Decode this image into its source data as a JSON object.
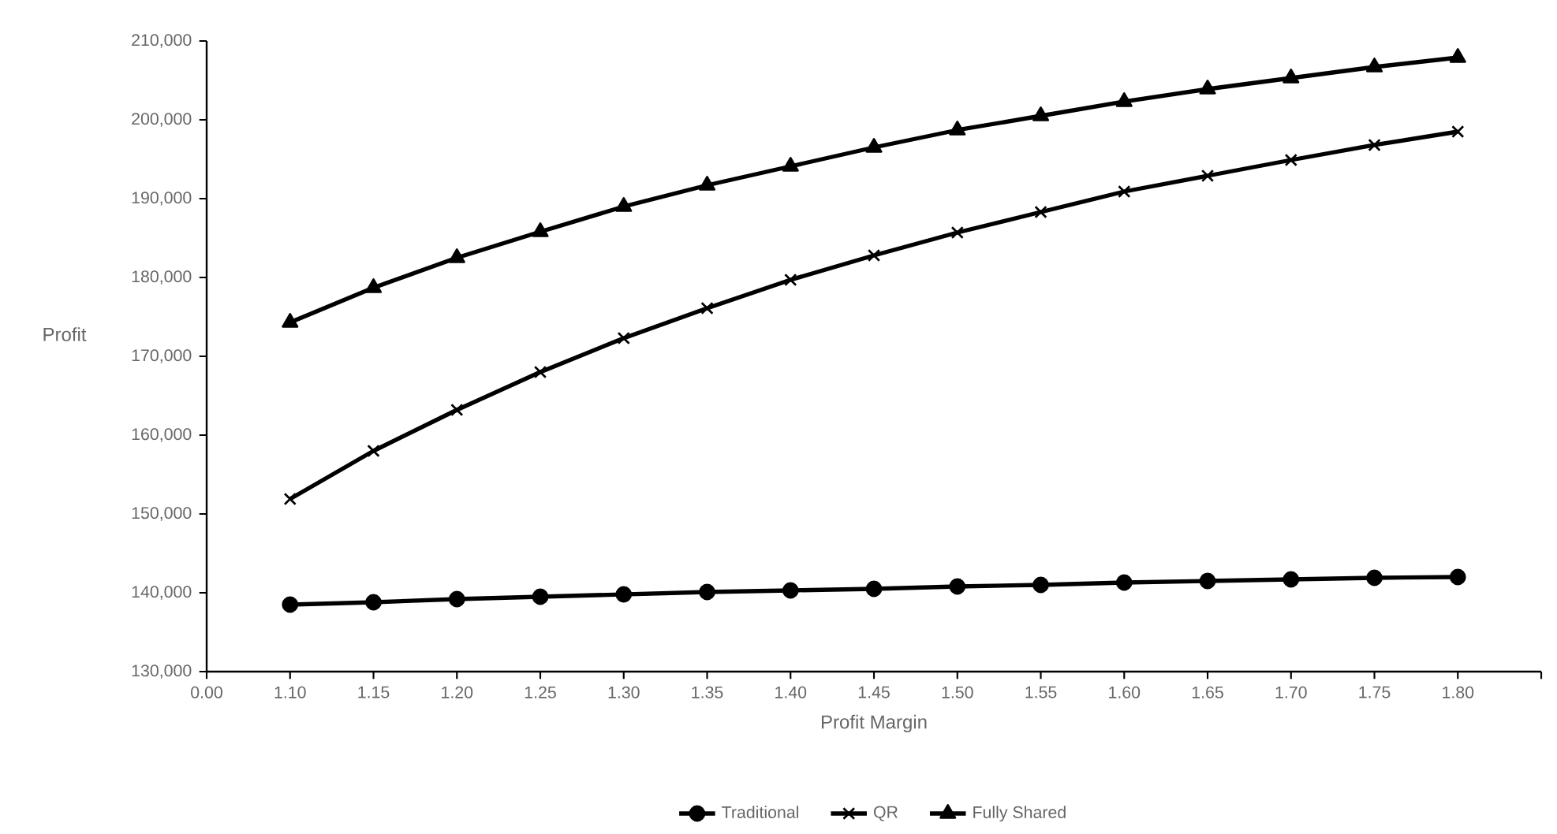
{
  "chart_data": {
    "type": "line",
    "xlabel": "Profit Margin",
    "ylabel": "Profit",
    "categories": [
      "0.00",
      "1.10",
      "1.15",
      "1.20",
      "1.25",
      "1.30",
      "1.35",
      "1.40",
      "1.45",
      "1.50",
      "1.55",
      "1.60",
      "1.65",
      "1.70",
      "1.75",
      "1.80",
      null
    ],
    "series": [
      {
        "name": "Traditional",
        "color": "#000000",
        "marker": "circle",
        "values": [
          null,
          138500,
          138800,
          139200,
          139500,
          139800,
          140100,
          140300,
          140500,
          140800,
          141000,
          141300,
          141500,
          141700,
          141900,
          142000,
          null
        ]
      },
      {
        "name": "QR",
        "color": "#000000",
        "marker": "cross",
        "values": [
          null,
          151900,
          158000,
          163200,
          168000,
          172300,
          176100,
          179700,
          182800,
          185700,
          188300,
          190900,
          192900,
          194900,
          196800,
          198500,
          null
        ]
      },
      {
        "name": "Fully Shared",
        "color": "#000000",
        "marker": "triangle",
        "values": [
          null,
          174300,
          178700,
          182500,
          185800,
          189000,
          191700,
          194100,
          196500,
          198700,
          200500,
          202300,
          203900,
          205300,
          206700,
          207900,
          null
        ]
      }
    ],
    "ylim": [
      130000,
      210000
    ],
    "yticks": [
      {
        "value": 130000,
        "label": "130,000"
      },
      {
        "value": 140000,
        "label": "140,000"
      },
      {
        "value": 150000,
        "label": "150,000"
      },
      {
        "value": 160000,
        "label": "160,000"
      },
      {
        "value": 170000,
        "label": "170,000"
      },
      {
        "value": 180000,
        "label": "180,000"
      },
      {
        "value": 190000,
        "label": "190,000"
      },
      {
        "value": 200000,
        "label": "200,000"
      },
      {
        "value": 210000,
        "label": "210,000"
      }
    ],
    "grid": false,
    "legend": "bottom",
    "line_style": "solid"
  }
}
